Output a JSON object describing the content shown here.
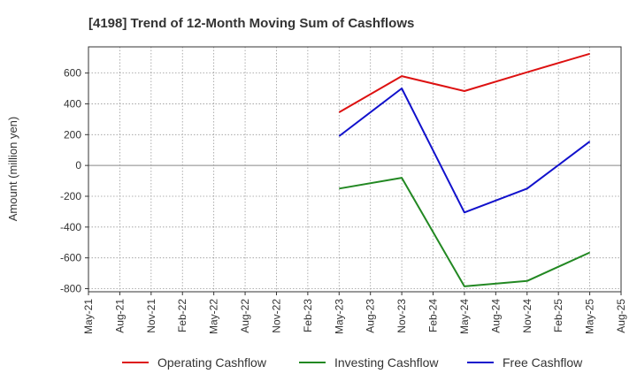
{
  "chart_data": {
    "type": "line",
    "title": "[4198]  Trend of 12-Month Moving Sum of Cashflows",
    "xlabel": "",
    "ylabel": "Amount (million yen)",
    "ylim": [
      -820,
      770
    ],
    "yticks": [
      -800,
      -600,
      -400,
      -200,
      0,
      200,
      400,
      600
    ],
    "xticks": [
      "May-21",
      "Aug-21",
      "Nov-21",
      "Feb-22",
      "May-22",
      "Aug-22",
      "Nov-22",
      "Feb-23",
      "May-23",
      "Aug-23",
      "Nov-23",
      "Feb-24",
      "May-24",
      "Aug-24",
      "Nov-24",
      "Feb-25",
      "May-25",
      "Aug-25"
    ],
    "x": [
      "May-23",
      "Nov-23",
      "May-24",
      "Nov-24",
      "May-25"
    ],
    "grid": true,
    "legend_position": "bottom",
    "series": [
      {
        "name": "Operating Cashflow",
        "color": "#dd1111",
        "values": [
          345,
          580,
          483,
          605,
          725
        ]
      },
      {
        "name": "Investing Cashflow",
        "color": "#228822",
        "values": [
          -150,
          -80,
          -785,
          -750,
          -565
        ]
      },
      {
        "name": "Free Cashflow",
        "color": "#1111cc",
        "values": [
          190,
          500,
          -305,
          -150,
          155
        ]
      }
    ]
  }
}
